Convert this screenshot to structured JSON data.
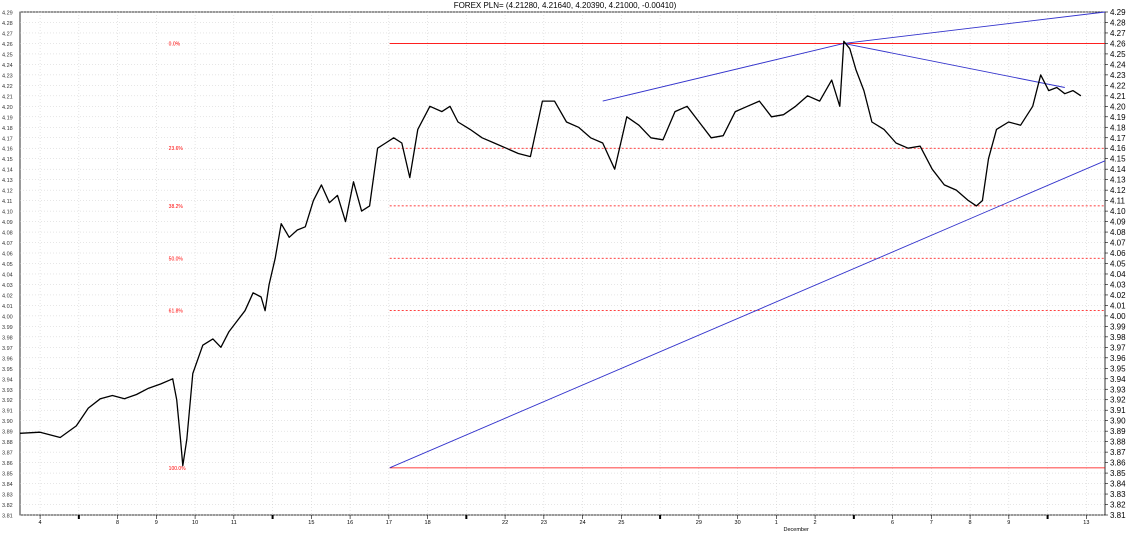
{
  "chart_data": {
    "type": "line",
    "title": "FOREX PLN= (4.21280, 4.21640, 4.20390, 4.21000, -0.00410)",
    "y_axis": {
      "min": 3.81,
      "max": 4.29,
      "step": 0.01,
      "position": "right-and-left",
      "grid": true
    },
    "x_axis": {
      "tick_labels": [
        "4",
        "",
        "8",
        "9",
        "10",
        "11",
        "",
        "15",
        "16",
        "17",
        "18",
        "",
        "22",
        "23",
        "24",
        "25",
        "",
        "29",
        "30",
        "1",
        "2",
        "",
        "6",
        "7",
        "8",
        "9",
        "",
        "13"
      ],
      "month_label": "December",
      "grid": true
    },
    "colors": {
      "price": "#000000",
      "trendline": "#3333cc",
      "fib": "#ff0000",
      "grid": "#cccccc"
    },
    "fibonacci_levels": [
      {
        "label": "0.0%",
        "value": 4.26,
        "style": "solid"
      },
      {
        "label": "23.6%",
        "value": 4.16,
        "style": "dotted"
      },
      {
        "label": "38.2%",
        "value": 4.105,
        "style": "dotted"
      },
      {
        "label": "50.0%",
        "value": 4.055,
        "style": "dotted"
      },
      {
        "label": "61.8%",
        "value": 4.005,
        "style": "dotted"
      },
      {
        "label": "100.0%",
        "value": 3.855,
        "style": "solid"
      }
    ],
    "trendlines": [
      {
        "name": "",
        "points": [
          [
            9.2,
            3.855
          ],
          [
            27.0,
            4.148
          ]
        ]
      },
      {
        "name": "",
        "points": [
          [
            14.5,
            4.205
          ],
          [
            20.5,
            4.26
          ],
          [
            27.0,
            4.29
          ]
        ]
      },
      {
        "name": "",
        "points": [
          [
            20.5,
            4.26
          ],
          [
            26.0,
            4.218
          ]
        ]
      }
    ],
    "series": [
      {
        "name": "",
        "x": [
          0,
          0.5,
          1.0,
          1.4,
          1.7,
          2.0,
          2.3,
          2.6,
          2.9,
          3.2,
          3.5,
          3.8,
          3.9,
          4.0,
          4.05,
          4.15,
          4.3,
          4.55,
          4.8,
          5.0,
          5.2,
          5.4,
          5.6,
          5.8,
          6.0,
          6.1,
          6.2,
          6.35,
          6.5,
          6.7,
          6.9,
          7.1,
          7.3,
          7.5,
          7.7,
          7.9,
          8.1,
          8.3,
          8.5,
          8.7,
          8.9,
          9.1,
          9.3,
          9.5,
          9.7,
          9.9,
          10.2,
          10.5,
          10.7,
          10.9,
          11.2,
          11.5,
          11.8,
          12.1,
          12.4,
          12.7,
          13.0,
          13.3,
          13.6,
          13.9,
          14.2,
          14.5,
          14.8,
          15.1,
          15.4,
          15.7,
          16.0,
          16.3,
          16.6,
          16.9,
          17.2,
          17.5,
          17.8,
          18.1,
          18.4,
          18.7,
          19.0,
          19.3,
          19.6,
          19.9,
          20.2,
          20.4,
          20.5,
          20.65,
          20.8,
          21.0,
          21.2,
          21.5,
          21.8,
          22.1,
          22.4,
          22.7,
          23.0,
          23.3,
          23.6,
          23.8,
          23.95,
          24.1,
          24.3,
          24.6,
          24.9,
          25.2,
          25.4,
          25.6,
          25.8,
          26.0,
          26.2,
          26.4
        ],
        "y": [
          3.888,
          3.889,
          3.884,
          3.895,
          3.912,
          3.921,
          3.924,
          3.921,
          3.925,
          3.931,
          3.935,
          3.94,
          3.92,
          3.88,
          3.857,
          3.882,
          3.945,
          3.972,
          3.978,
          3.97,
          3.985,
          3.995,
          4.005,
          4.022,
          4.018,
          4.005,
          4.03,
          4.055,
          4.088,
          4.075,
          4.082,
          4.085,
          4.11,
          4.125,
          4.108,
          4.115,
          4.09,
          4.128,
          4.1,
          4.105,
          4.16,
          4.165,
          4.17,
          4.165,
          4.132,
          4.178,
          4.2,
          4.195,
          4.2,
          4.185,
          4.178,
          4.17,
          4.165,
          4.16,
          4.155,
          4.152,
          4.205,
          4.205,
          4.185,
          4.18,
          4.17,
          4.165,
          4.14,
          4.19,
          4.182,
          4.17,
          4.168,
          4.195,
          4.2,
          4.185,
          4.17,
          4.172,
          4.195,
          4.2,
          4.205,
          4.19,
          4.192,
          4.2,
          4.21,
          4.205,
          4.225,
          4.2,
          4.262,
          4.255,
          4.235,
          4.215,
          4.185,
          4.178,
          4.165,
          4.16,
          4.162,
          4.14,
          4.125,
          4.12,
          4.11,
          4.105,
          4.11,
          4.15,
          4.178,
          4.185,
          4.182,
          4.2,
          4.23,
          4.215,
          4.218,
          4.212,
          4.215,
          4.21
        ]
      }
    ]
  }
}
